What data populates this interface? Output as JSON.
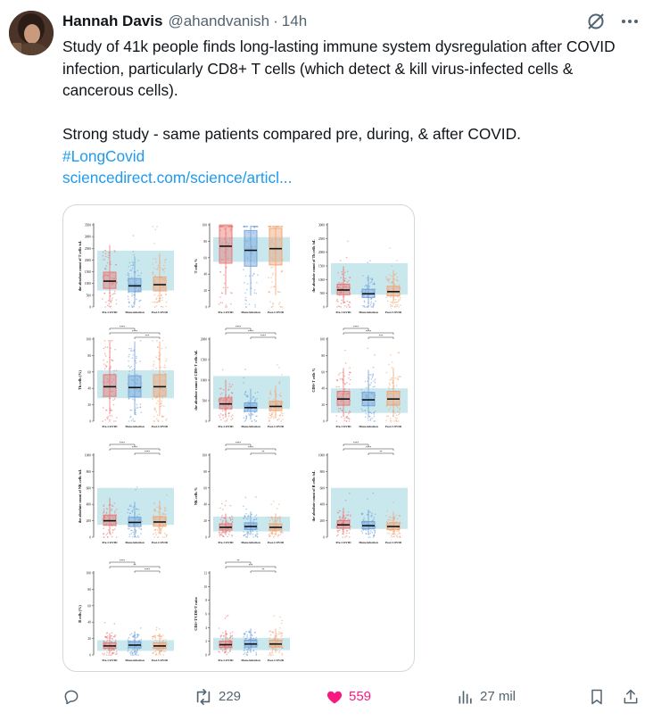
{
  "author": {
    "display_name": "Hannah Davis",
    "handle": "@ahandvanish",
    "separator": "·",
    "time": "14h"
  },
  "post": {
    "line1": "Study of 41k people finds long-lasting immune system dysregulation after COVID infection, particularly CD8+ T cells (which detect & kill virus-infected cells & cancerous cells).",
    "line2": "Strong study - same patients compared pre, during, & after COVID.",
    "hashtag": "#LongCovid",
    "link": "sciencedirect.com/science/articl..."
  },
  "media": {
    "group_labels": [
      "Pre-COVID",
      "Mono infection",
      "Post-COVID"
    ],
    "panels": [
      {
        "ylabel": "the absolute count of T cells /uL",
        "ticks": [
          "0",
          "500",
          "1000",
          "1500",
          "2000",
          "2500",
          "3000",
          "3500"
        ],
        "sig": [],
        "medians": [
          1100,
          900,
          950
        ],
        "band": [
          700,
          2400
        ],
        "ymax": 3500
      },
      {
        "ylabel": "T cells %",
        "ticks": [
          "0",
          "20",
          "40",
          "60",
          "80",
          "100"
        ],
        "sig": [],
        "medians": [
          74,
          69,
          71
        ],
        "band": [
          55,
          85
        ],
        "ymax": 100
      },
      {
        "ylabel": "the absolute count of Th cells /uL",
        "ticks": [
          "0",
          "500",
          "1000",
          "1500",
          "2000",
          "2500",
          "3000"
        ],
        "sig": [],
        "medians": [
          620,
          480,
          560
        ],
        "band": [
          450,
          1600
        ],
        "ymax": 3000
      },
      {
        "ylabel": "Th cells (%)",
        "ticks": [
          "0",
          "20",
          "40",
          "60",
          "80",
          "100"
        ],
        "sig": [
          "****",
          "****",
          "***"
        ],
        "medians": [
          42,
          41,
          42
        ],
        "band": [
          28,
          62
        ],
        "ymax": 100
      },
      {
        "ylabel": "the absolute count of CD8+T cells /uL",
        "ticks": [
          "0",
          "500",
          "1000",
          "1500",
          "2000"
        ],
        "sig": [
          "****",
          "****",
          "****"
        ],
        "medians": [
          420,
          330,
          360
        ],
        "band": [
          300,
          1100
        ],
        "ymax": 2000
      },
      {
        "ylabel": "CD8+T cells %",
        "ticks": [
          "0",
          "20",
          "40",
          "60",
          "80",
          "100"
        ],
        "sig": [
          "****",
          "****",
          "***"
        ],
        "medians": [
          27,
          26,
          27
        ],
        "band": [
          10,
          40
        ],
        "ymax": 100
      },
      {
        "ylabel": "the absolute count of NK cells /uL",
        "ticks": [
          "0",
          "200",
          "400",
          "600",
          "800",
          "1000"
        ],
        "sig": [
          "****",
          "****",
          "****"
        ],
        "medians": [
          200,
          180,
          185
        ],
        "band": [
          150,
          600
        ],
        "ymax": 1000
      },
      {
        "ylabel": "NK cells %",
        "ticks": [
          "0",
          "20",
          "40",
          "60",
          "80",
          "100"
        ],
        "sig": [
          "****",
          "****",
          "**"
        ],
        "medians": [
          12,
          13,
          12
        ],
        "band": [
          7,
          25
        ],
        "ymax": 100
      },
      {
        "ylabel": "the absolute count of B cells /uL",
        "ticks": [
          "0",
          "200",
          "400",
          "600",
          "800",
          "1000"
        ],
        "sig": [
          "****",
          "****",
          "**"
        ],
        "medians": [
          150,
          140,
          130
        ],
        "band": [
          100,
          600
        ],
        "ymax": 1000
      },
      {
        "ylabel": "B cells (%)",
        "ticks": [
          "0",
          "20",
          "40",
          "60",
          "80",
          "100"
        ],
        "sig": [
          "****",
          "**",
          "****"
        ],
        "medians": [
          11,
          12,
          11
        ],
        "band": [
          5,
          18
        ],
        "ymax": 100
      },
      {
        "ylabel": "CD4+T/CD8+T ratio",
        "ticks": [
          "0",
          "2",
          "4",
          "6",
          "8",
          "10",
          "12"
        ],
        "sig": [
          "**",
          "***",
          "**"
        ],
        "medians": [
          1.5,
          1.6,
          1.6
        ],
        "band": [
          0.7,
          2.5
        ],
        "ymax": 12
      }
    ]
  },
  "actions": {
    "reply": {
      "icon": "reply-icon",
      "count": ""
    },
    "repost": {
      "icon": "repost-icon",
      "count": "229"
    },
    "like": {
      "icon": "heart-icon",
      "count": "559",
      "color": "#f91880"
    },
    "views": {
      "icon": "views-icon",
      "count": "27 mil"
    },
    "bookmark": {
      "icon": "bookmark-icon"
    },
    "share": {
      "icon": "share-icon"
    }
  },
  "colors": {
    "pre": "#e8736f",
    "mono": "#6f9fd8",
    "post": "#f2a06e",
    "band": "#c9e8ee",
    "link": "#1d9bf0"
  }
}
